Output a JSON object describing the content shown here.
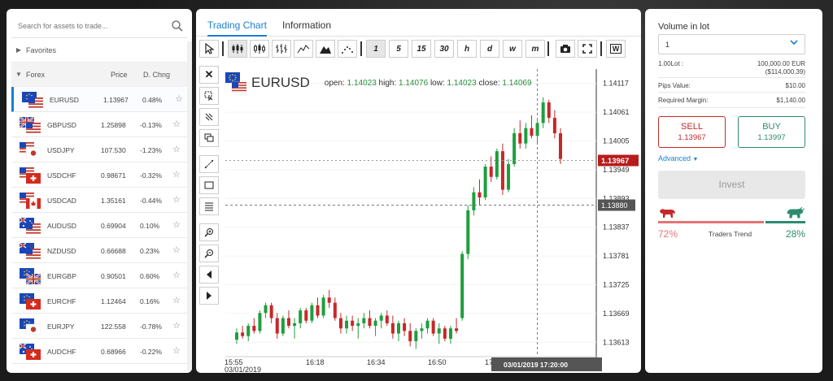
{
  "search": {
    "placeholder": "Search for assets to trade..."
  },
  "sections": {
    "favorites": "Favorites",
    "forex": "Forex",
    "price_col": "Price",
    "chg_col": "D. Chng"
  },
  "assets": [
    {
      "sym": "EURUSD",
      "price": "1.13967",
      "chg": "0.48%",
      "flag": "eu-us"
    },
    {
      "sym": "GBPUSD",
      "price": "1.25898",
      "chg": "-0.13%",
      "flag": "gb-us"
    },
    {
      "sym": "USDJPY",
      "price": "107.530",
      "chg": "-1.23%",
      "flag": "us-jp"
    },
    {
      "sym": "USDCHF",
      "price": "0.98671",
      "chg": "-0.32%",
      "flag": "us-ch"
    },
    {
      "sym": "USDCAD",
      "price": "1.35161",
      "chg": "-0.44%",
      "flag": "us-ca"
    },
    {
      "sym": "AUDUSD",
      "price": "0.69904",
      "chg": "0.10%",
      "flag": "au-us"
    },
    {
      "sym": "NZDUSD",
      "price": "0.66688",
      "chg": "0.23%",
      "flag": "nz-us"
    },
    {
      "sym": "EURGBP",
      "price": "0.90501",
      "chg": "0.60%",
      "flag": "eu-gb"
    },
    {
      "sym": "EURCHF",
      "price": "1.12464",
      "chg": "0.16%",
      "flag": "eu-ch"
    },
    {
      "sym": "EURJPY",
      "price": "122.558",
      "chg": "-0.78%",
      "flag": "eu-jp"
    },
    {
      "sym": "AUDCHF",
      "price": "0.68966",
      "chg": "-0.22%",
      "flag": "au-ch"
    }
  ],
  "tabs": {
    "chart": "Trading Chart",
    "info": "Information"
  },
  "toolbar": {
    "timeframes": [
      "1",
      "5",
      "15",
      "30",
      "h",
      "d",
      "w",
      "m"
    ],
    "last": "W"
  },
  "chart_head": {
    "symbol": "EURUSD",
    "open_label": "open:",
    "open": "1.14023",
    "high_label": "high:",
    "high": "1.14076",
    "low_label": "low:",
    "low": "1.14023",
    "close_label": "close:",
    "close": "1.14069"
  },
  "chart_data": {
    "type": "candlestick",
    "y_ticks": [
      "1.14117",
      "1.14061",
      "1.14005",
      "1.13949",
      "1.13893",
      "1.13837",
      "1.13781",
      "1.13725",
      "1.13669",
      "1.13613"
    ],
    "ylim": [
      1.13585,
      1.14145
    ],
    "x_ticks": [
      "15:55",
      "16:18",
      "16:34",
      "16:50",
      "17"
    ],
    "x_date": "03/01/2019",
    "current_price": "1.13967",
    "crosshair_price": "1.13880",
    "crosshair_time": "03/01/2019 17:20:00",
    "candles": [
      [
        1.13618,
        1.1364,
        1.1361,
        1.13632
      ],
      [
        1.13632,
        1.13645,
        1.1362,
        1.13625
      ],
      [
        1.13625,
        1.1365,
        1.13615,
        1.13645
      ],
      [
        1.13645,
        1.1366,
        1.1363,
        1.13635
      ],
      [
        1.13635,
        1.13675,
        1.1363,
        1.1367
      ],
      [
        1.1367,
        1.1369,
        1.1366,
        1.13685
      ],
      [
        1.13685,
        1.1369,
        1.1365,
        1.1366
      ],
      [
        1.1366,
        1.1367,
        1.1362,
        1.1363
      ],
      [
        1.1363,
        1.13665,
        1.13625,
        1.1366
      ],
      [
        1.1366,
        1.13675,
        1.1364,
        1.13645
      ],
      [
        1.13645,
        1.1366,
        1.1362,
        1.1365
      ],
      [
        1.1365,
        1.1368,
        1.1364,
        1.13675
      ],
      [
        1.13675,
        1.1368,
        1.1365,
        1.13655
      ],
      [
        1.13655,
        1.1369,
        1.1365,
        1.13685
      ],
      [
        1.13685,
        1.137,
        1.1366,
        1.13665
      ],
      [
        1.13665,
        1.13705,
        1.1366,
        1.137
      ],
      [
        1.137,
        1.13715,
        1.1368,
        1.1369
      ],
      [
        1.1369,
        1.137,
        1.13655,
        1.1366
      ],
      [
        1.1366,
        1.1367,
        1.1363,
        1.1364
      ],
      [
        1.1364,
        1.13665,
        1.1363,
        1.13655
      ],
      [
        1.13655,
        1.13665,
        1.13635,
        1.13645
      ],
      [
        1.13645,
        1.1366,
        1.1362,
        1.1365
      ],
      [
        1.1365,
        1.1367,
        1.1364,
        1.1366
      ],
      [
        1.1366,
        1.13675,
        1.1364,
        1.13645
      ],
      [
        1.13645,
        1.1366,
        1.13625,
        1.13655
      ],
      [
        1.13655,
        1.1367,
        1.1364,
        1.13665
      ],
      [
        1.13665,
        1.13675,
        1.13645,
        1.1365
      ],
      [
        1.1365,
        1.13665,
        1.1362,
        1.1363
      ],
      [
        1.1363,
        1.13655,
        1.13615,
        1.1365
      ],
      [
        1.1365,
        1.1366,
        1.13625,
        1.13635
      ],
      [
        1.13635,
        1.1365,
        1.13605,
        1.13615
      ],
      [
        1.13615,
        1.1364,
        1.136,
        1.13635
      ],
      [
        1.13635,
        1.1365,
        1.1362,
        1.1364
      ],
      [
        1.1364,
        1.1366,
        1.1363,
        1.13655
      ],
      [
        1.13655,
        1.1366,
        1.13625,
        1.1363
      ],
      [
        1.1363,
        1.1365,
        1.1361,
        1.1364
      ],
      [
        1.1364,
        1.13645,
        1.13615,
        1.1362
      ],
      [
        1.1362,
        1.13645,
        1.1361,
        1.1364
      ],
      [
        1.1364,
        1.1366,
        1.1363,
        1.13635
      ],
      [
        1.1366,
        1.1379,
        1.13655,
        1.13785
      ],
      [
        1.13785,
        1.1388,
        1.13775,
        1.1387
      ],
      [
        1.1387,
        1.13915,
        1.1386,
        1.13905
      ],
      [
        1.13905,
        1.1393,
        1.1388,
        1.13895
      ],
      [
        1.13895,
        1.1396,
        1.1389,
        1.13955
      ],
      [
        1.13955,
        1.13975,
        1.13925,
        1.13935
      ],
      [
        1.13935,
        1.1399,
        1.1393,
        1.13985
      ],
      [
        1.13985,
        1.14,
        1.139,
        1.1391
      ],
      [
        1.1391,
        1.1397,
        1.13905,
        1.1396
      ],
      [
        1.1396,
        1.1403,
        1.13955,
        1.1402
      ],
      [
        1.1402,
        1.14045,
        1.1399,
        1.14
      ],
      [
        1.14,
        1.1404,
        1.1399,
        1.1403
      ],
      [
        1.1403,
        1.14055,
        1.1401,
        1.14015
      ],
      [
        1.14015,
        1.14045,
        1.14,
        1.1404
      ],
      [
        1.1404,
        1.1409,
        1.1403,
        1.1408
      ],
      [
        1.1408,
        1.14085,
        1.1404,
        1.1405
      ],
      [
        1.1405,
        1.14065,
        1.1401,
        1.1402
      ],
      [
        1.1402,
        1.1403,
        1.1396,
        1.1397
      ]
    ]
  },
  "right": {
    "vol_label": "Volume in lot",
    "vol_value": "1",
    "lot_label": "1.00Lot :",
    "lot_value": "100,000.00 EUR",
    "lot_value2": "($114,000.39)",
    "pips_label": "Pips Value:",
    "pips_value": "$10.00",
    "margin_label": "Required Margin:",
    "margin_value": "$1,140.00",
    "sell_label": "SELL",
    "sell_price": "1.13967",
    "buy_label": "BUY",
    "buy_price": "1.13997",
    "advanced": "Advanced",
    "invest": "Invest",
    "bear_pct": "72%",
    "bull_pct": "28%",
    "trend_label": "Traders Trend",
    "bear_fraction": 0.72
  }
}
